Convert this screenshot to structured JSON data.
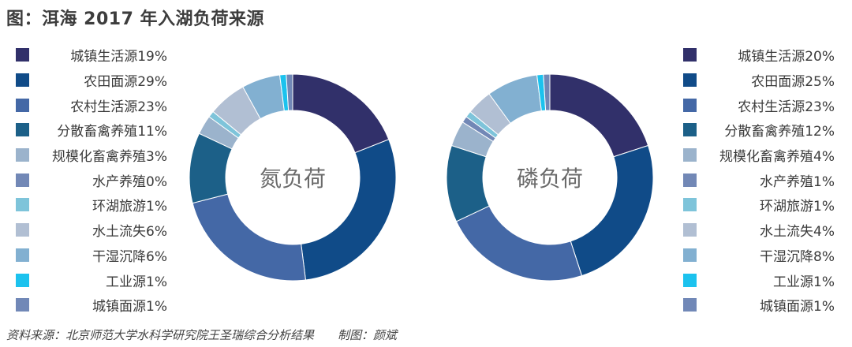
{
  "title": "图：洱海 2017 年入湖负荷来源",
  "footer": {
    "source": "资料来源：北京师范大学水科学研究院王圣瑞综合分析结果",
    "author": "制图：颜斌"
  },
  "chart_data": [
    {
      "type": "pie",
      "donut": true,
      "center_label": "氮负荷",
      "legend_position": "left",
      "categories": [
        "城镇生活源",
        "农田面源",
        "农村生活源",
        "分散畜禽养殖",
        "规模化畜禽养殖",
        "水产养殖",
        "环湖旅游",
        "水土流失",
        "干湿沉降",
        "工业源",
        "城镇面源"
      ],
      "values": [
        19,
        29,
        23,
        11,
        3,
        0,
        1,
        6,
        6,
        1,
        1
      ],
      "legend_labels": [
        "城镇生活源19%",
        "农田面源29%",
        "农村生活源23%",
        "分散畜禽养殖11%",
        "规模化畜禽养殖3%",
        "水产养殖0%",
        "环湖旅游1%",
        "水土流失6%",
        "干湿沉降6%",
        "工业源1%",
        "城镇面源1%"
      ],
      "colors": [
        "#31306a",
        "#104b88",
        "#4468a6",
        "#1c6088",
        "#9bb3cc",
        "#7288b6",
        "#7ec4da",
        "#b1bfd3",
        "#82b0d1",
        "#1cc2ee",
        "#7188b7"
      ]
    },
    {
      "type": "pie",
      "donut": true,
      "center_label": "磷负荷",
      "legend_position": "right",
      "categories": [
        "城镇生活源",
        "农田面源",
        "农村生活源",
        "分散畜禽养殖",
        "规模化畜禽养殖",
        "水产养殖",
        "环湖旅游",
        "水土流失",
        "干湿沉降",
        "工业源",
        "城镇面源"
      ],
      "values": [
        20,
        25,
        23,
        12,
        4,
        1,
        1,
        4,
        8,
        1,
        1
      ],
      "legend_labels": [
        "城镇生活源20%",
        "农田面源25%",
        "农村生活源23%",
        "分散畜禽养殖12%",
        "规模化畜禽养殖4%",
        "水产养殖1%",
        "环湖旅游1%",
        "水土流失4%",
        "干湿沉降8%",
        "工业源1%",
        "城镇面源1%"
      ],
      "colors": [
        "#31306a",
        "#104b88",
        "#4468a6",
        "#1c6088",
        "#9bb3cc",
        "#7288b6",
        "#7ec4da",
        "#b1bfd3",
        "#82b0d1",
        "#1cc2ee",
        "#7188b7"
      ]
    }
  ]
}
